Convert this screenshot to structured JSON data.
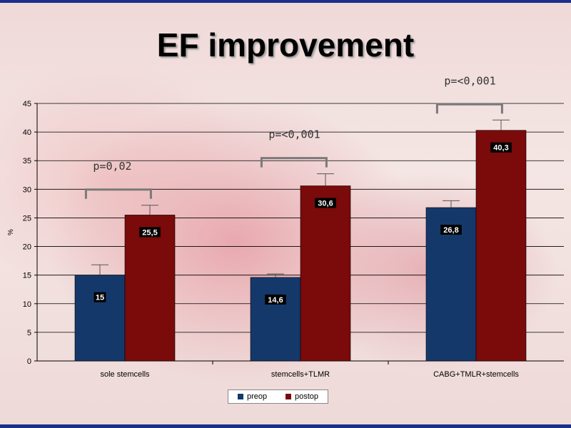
{
  "title": "EF improvement",
  "colors": {
    "preop": "#15386b",
    "postop": "#7b0a0a",
    "bracket": "#7a7a7a"
  },
  "chart_data": {
    "type": "bar",
    "title": "EF improvement",
    "ylabel": "%",
    "xlabel": "",
    "ylim": [
      0,
      45
    ],
    "yticks": [
      0,
      5,
      10,
      15,
      20,
      25,
      30,
      35,
      40,
      45
    ],
    "grid": true,
    "legend_position": "bottom",
    "categories": [
      "sole stemcells",
      "stemcells+TLMR",
      "CABG+TMLR+stemcells"
    ],
    "series": [
      {
        "name": "preop",
        "values": [
          15,
          14.6,
          26.8
        ],
        "labels": [
          "15",
          "14,6",
          "26,8"
        ],
        "error": [
          1.8,
          0.6,
          1.2
        ]
      },
      {
        "name": "postop",
        "values": [
          25.5,
          30.6,
          40.3
        ],
        "labels": [
          "25,5",
          "30,6",
          "40,3"
        ],
        "error": [
          1.7,
          2.1,
          1.8
        ]
      }
    ],
    "annotations": [
      "p=0,02",
      "p=<0,001",
      "p=<0,001"
    ]
  }
}
